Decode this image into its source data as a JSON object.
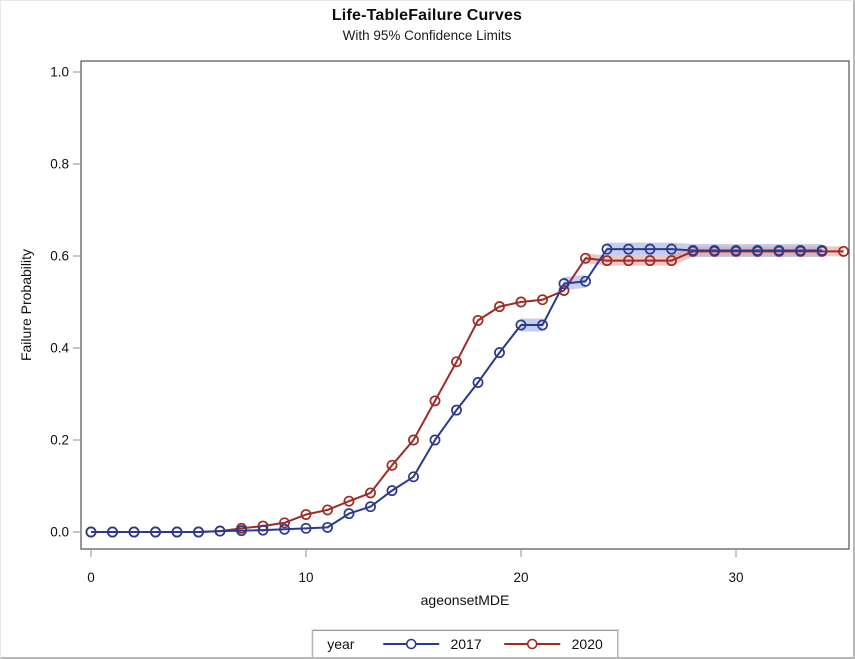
{
  "chart_data": {
    "type": "line",
    "title": "Life-TableFailure Curves",
    "subtitle": "With 95% Confidence Limits",
    "xlabel": "ageonsetMDE",
    "ylabel": "Failure Probability",
    "xlim": [
      0,
      35
    ],
    "ylim": [
      0.0,
      1.0
    ],
    "x_ticks": [
      0,
      10,
      20,
      30
    ],
    "y_ticks": [
      0.0,
      0.2,
      0.4,
      0.6,
      0.8,
      1.0
    ],
    "grid": false,
    "legend": {
      "label": "year",
      "position": "bottom"
    },
    "series": [
      {
        "name": "2017",
        "color": "#2B3A8F",
        "band_color": "#9FAEDC",
        "marker": "circle",
        "x": [
          0,
          1,
          2,
          3,
          4,
          5,
          6,
          7,
          8,
          9,
          10,
          11,
          12,
          13,
          14,
          15,
          16,
          17,
          18,
          19,
          20,
          21,
          22,
          23,
          24,
          25,
          26,
          27,
          28,
          29,
          30,
          31,
          32,
          33,
          34
        ],
        "y": [
          0,
          0,
          0,
          0,
          0,
          0,
          0.002,
          0.003,
          0.004,
          0.006,
          0.008,
          0.01,
          0.04,
          0.055,
          0.09,
          0.12,
          0.2,
          0.265,
          0.325,
          0.39,
          0.45,
          0.45,
          0.54,
          0.545,
          0.615,
          0.615,
          0.615,
          0.615,
          0.612,
          0.612,
          0.612,
          0.612,
          0.612,
          0.612,
          0.612
        ],
        "band_ranges": [
          [
            20,
            21
          ],
          [
            22,
            23
          ],
          [
            24,
            34
          ]
        ]
      },
      {
        "name": "2020",
        "color": "#9E2B25",
        "band_color": "#E2A49F",
        "marker": "circle",
        "x": [
          0,
          1,
          2,
          3,
          4,
          5,
          6,
          7,
          8,
          9,
          10,
          11,
          12,
          13,
          14,
          15,
          16,
          17,
          18,
          19,
          20,
          21,
          22,
          23,
          24,
          25,
          26,
          27,
          28,
          29,
          30,
          31,
          32,
          33,
          34,
          35
        ],
        "y": [
          0,
          0,
          0,
          0,
          0,
          0,
          0.002,
          0.008,
          0.013,
          0.02,
          0.038,
          0.048,
          0.067,
          0.085,
          0.145,
          0.2,
          0.285,
          0.37,
          0.46,
          0.49,
          0.5,
          0.505,
          0.525,
          0.595,
          0.59,
          0.59,
          0.59,
          0.59,
          0.61,
          0.61,
          0.61,
          0.61,
          0.61,
          0.61,
          0.61,
          0.61
        ],
        "band_ranges": [
          [
            23,
            35
          ]
        ]
      }
    ]
  }
}
